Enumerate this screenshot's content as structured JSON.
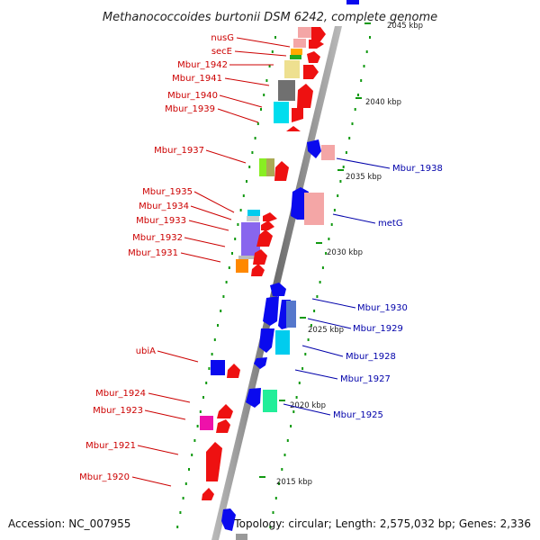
{
  "title": "Methanococcoides burtonii DSM 6242, complete genome",
  "accession": "Accession: NC_007955",
  "topology": "Topology: circular; Length: 2,575,032 bp; Genes: 2,336",
  "colors": {
    "forward_label": "#cc0000",
    "reverse_label": "#0000aa",
    "backbone": "#888888",
    "ticks": "#119911"
  },
  "ticks": [
    {
      "label": "2045 kbp",
      "bp": 2045
    },
    {
      "label": "2040 kbp",
      "bp": 2040
    },
    {
      "label": "2035 kbp",
      "bp": 2035
    },
    {
      "label": "2030 kbp",
      "bp": 2030
    },
    {
      "label": "2025 kbp",
      "bp": 2025
    },
    {
      "label": "2020 kbp",
      "bp": 2020
    },
    {
      "label": "2015 kbp",
      "bp": 2015
    }
  ],
  "forward_genes": [
    "nusG",
    "secE",
    "Mbur_1942",
    "Mbur_1941",
    "Mbur_1940",
    "Mbur_1939",
    "Mbur_1937",
    "Mbur_1935",
    "Mbur_1934",
    "Mbur_1933",
    "Mbur_1932",
    "Mbur_1931",
    "ubiA",
    "Mbur_1924",
    "Mbur_1923",
    "Mbur_1921",
    "Mbur_1920"
  ],
  "reverse_genes": [
    "Mbur_1938",
    "metG",
    "Mbur_1930",
    "Mbur_1929",
    "Mbur_1928",
    "Mbur_1927",
    "Mbur_1925"
  ]
}
